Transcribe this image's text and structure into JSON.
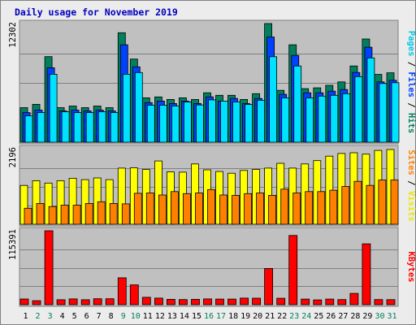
{
  "chart_data": {
    "type": "bar",
    "title": "Daily usage for November 2019",
    "days": [
      "1",
      "2",
      "3",
      "4",
      "5",
      "6",
      "7",
      "8",
      "9",
      "10",
      "11",
      "12",
      "13",
      "14",
      "15",
      "16",
      "17",
      "18",
      "19",
      "20",
      "21",
      "22",
      "23",
      "24",
      "25",
      "26",
      "27",
      "28",
      "29",
      "30",
      "31"
    ],
    "weekend_days": [
      "2",
      "3",
      "9",
      "10",
      "16",
      "17",
      "23",
      "24",
      "30",
      "31"
    ],
    "colors": {
      "background": "#c0c0c0",
      "frame": "#ececec",
      "title": "#0000c0",
      "hits": "#00805c",
      "files": "#0040ff",
      "pages": "#00e0ff",
      "visits": "#ffff00",
      "sites": "#ff8000",
      "kbytes": "#ff0000",
      "weekday_label": "#000000",
      "weekend_label": "#00805c"
    },
    "panels": [
      {
        "id": "hits",
        "axis_max_label": "12302",
        "ymax": 12302,
        "right_label_parts": [
          {
            "text": "Pages",
            "color": "#00c8e8"
          },
          {
            "text": " / ",
            "color": "#000000"
          },
          {
            "text": "Files",
            "color": "#0040ff"
          },
          {
            "text": " / ",
            "color": "#000000"
          },
          {
            "text": "Hits",
            "color": "#00805c"
          }
        ],
        "series": [
          {
            "name": "Hits",
            "values": [
              3580,
              3930,
              8870,
              3580,
              3750,
              3580,
              3750,
              3580,
              11350,
              8620,
              4600,
              4690,
              4430,
              4600,
              4430,
              5120,
              4860,
              4860,
              4430,
              5030,
              12302,
              5380,
              10100,
              5550,
              5640,
              5900,
              6250,
              7900,
              10700,
              7030,
              7200
            ]
          },
          {
            "name": "Files",
            "values": [
              3070,
              3330,
              7720,
              3240,
              3330,
              3240,
              3330,
              3240,
              10100,
              7810,
              4100,
              4260,
              4010,
              4260,
              4010,
              4700,
              4260,
              4530,
              4000,
              4530,
              10900,
              4960,
              9000,
              5120,
              5120,
              5290,
              5460,
              7230,
              9850,
              6250,
              6420
            ]
          },
          {
            "name": "Pages",
            "values": [
              2740,
              3070,
              7040,
              3160,
              3070,
              3070,
              3160,
              3070,
              7040,
              7220,
              3830,
              3830,
              3760,
              4180,
              3860,
              4390,
              4260,
              4180,
              3920,
              4350,
              8860,
              4600,
              7900,
              4600,
              4780,
              4860,
              5030,
              6800,
              8740,
              6080,
              6170
            ]
          }
        ]
      },
      {
        "id": "visits",
        "axis_max_label": "2196",
        "ymax": 2196,
        "right_label_parts": [
          {
            "text": "Sites",
            "color": "#ff8000"
          },
          {
            "text": " / ",
            "color": "#000000"
          },
          {
            "text": "Visits",
            "color": "#e8e800"
          }
        ],
        "series": [
          {
            "name": "Visits",
            "values": [
              1140,
              1280,
              1210,
              1280,
              1350,
              1310,
              1360,
              1310,
              1650,
              1660,
              1610,
              1860,
              1540,
              1530,
              1770,
              1600,
              1550,
              1500,
              1580,
              1610,
              1650,
              1790,
              1650,
              1770,
              1870,
              2000,
              2080,
              2100,
              2060,
              2170,
              2196
            ]
          },
          {
            "name": "Sites",
            "values": [
              470,
              610,
              520,
              560,
              560,
              610,
              660,
              610,
              600,
              910,
              920,
              860,
              960,
              900,
              920,
              1020,
              860,
              850,
              900,
              920,
              850,
              1030,
              920,
              960,
              960,
              1000,
              1110,
              1260,
              1140,
              1300,
              1300
            ]
          }
        ]
      },
      {
        "id": "kbytes",
        "axis_max_label": "115391",
        "ymax": 115391,
        "right_label_parts": [
          {
            "text": "KBytes",
            "color": "#ff0000"
          }
        ],
        "series": [
          {
            "name": "KBytes",
            "values": [
              8900,
              6200,
              115391,
              7700,
              9000,
              7700,
              9200,
              9200,
              42000,
              31000,
              11500,
              10300,
              8400,
              8000,
              8400,
              9000,
              8700,
              8800,
              10300,
              10100,
              56500,
              10000,
              108000,
              8800,
              7500,
              8800,
              8000,
              17600,
              95000,
              8000,
              7900
            ]
          }
        ]
      }
    ],
    "grid": true,
    "legend_placement": "right-vertical"
  }
}
